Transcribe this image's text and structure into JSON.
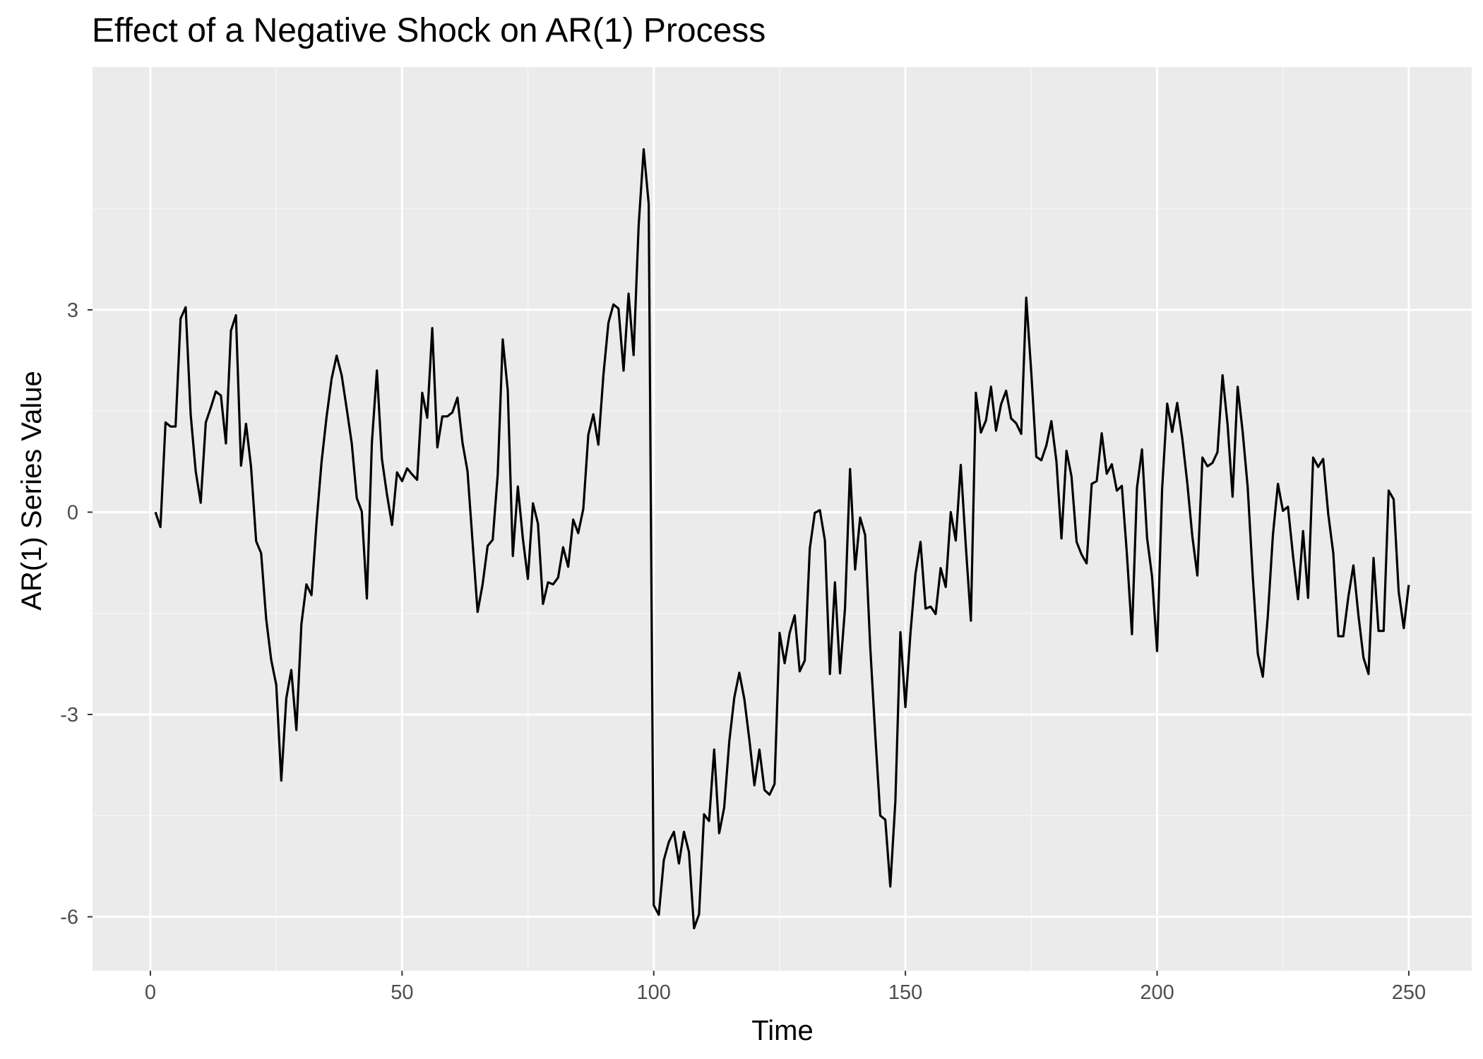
{
  "colors": {
    "panel_background": "#ebebeb",
    "grid_major": "#ffffff",
    "grid_minor": "#f5f5f5",
    "line": "#000000",
    "tick_label": "#4d4d4d",
    "text": "#000000"
  },
  "chart_data": {
    "type": "line",
    "title": "Effect of a Negative Shock on AR(1) Process",
    "xlabel": "Time",
    "ylabel": "AR(1) Series Value",
    "xlim": [
      -11.5,
      262.5
    ],
    "ylim": [
      -6.8,
      6.6
    ],
    "x_ticks": [
      0,
      50,
      100,
      150,
      200,
      250
    ],
    "x_tick_labels": [
      "0",
      "50",
      "100",
      "150",
      "200",
      "250"
    ],
    "y_ticks": [
      3,
      0,
      -3,
      -6
    ],
    "y_tick_labels": [
      "3",
      "0",
      "-3",
      "-6"
    ],
    "grid": true,
    "legend": "none",
    "series": [
      {
        "x": [
          1,
          2,
          3,
          4,
          5,
          6,
          7,
          8,
          9,
          10,
          11,
          12,
          13,
          14,
          15,
          16,
          17,
          18,
          19,
          20,
          21,
          22,
          23,
          24,
          25,
          26,
          27,
          28,
          29,
          30,
          31,
          32,
          33,
          34,
          35,
          36,
          37,
          38,
          39,
          40,
          41,
          42,
          43,
          44,
          45,
          46,
          47,
          48,
          49,
          50,
          51,
          52,
          53,
          54,
          55,
          56,
          57,
          58,
          59,
          60,
          61,
          62,
          63,
          64,
          65,
          66,
          67,
          68,
          69,
          70,
          71,
          72,
          73,
          74,
          75,
          76,
          77,
          78,
          79,
          80,
          81,
          82,
          83,
          84,
          85,
          86,
          87,
          88,
          89,
          90,
          91,
          92,
          93,
          94,
          95,
          96,
          97,
          98,
          99,
          100,
          101,
          102,
          103,
          104,
          105,
          106,
          107,
          108,
          109,
          110,
          111,
          112,
          113,
          114,
          115,
          116,
          117,
          118,
          119,
          120,
          121,
          122,
          123,
          124,
          125,
          126,
          127,
          128,
          129,
          130,
          131,
          132,
          133,
          134,
          135,
          136,
          137,
          138,
          139,
          140,
          141,
          142,
          143,
          144,
          145,
          146,
          147,
          148,
          149,
          150,
          151,
          152,
          153,
          154,
          155,
          156,
          157,
          158,
          159,
          160,
          161,
          162,
          163,
          164,
          165,
          166,
          167,
          168,
          169,
          170,
          171,
          172,
          173,
          174,
          175,
          176,
          177,
          178,
          179,
          180,
          181,
          182,
          183,
          184,
          185,
          186,
          187,
          188,
          189,
          190,
          191,
          192,
          193,
          194,
          195,
          196,
          197,
          198,
          199,
          200,
          201,
          202,
          203,
          204,
          205,
          206,
          207,
          208,
          209,
          210,
          211,
          212,
          213,
          214,
          215,
          216,
          217,
          218,
          219,
          220,
          221,
          222,
          223,
          224,
          225,
          226,
          227,
          228,
          229,
          230,
          231,
          232,
          233,
          234,
          235,
          236,
          237,
          238,
          239,
          240,
          241,
          242,
          243,
          244,
          245,
          246,
          247,
          248,
          249,
          250
        ],
        "y": [
          0,
          -0.22,
          1.33,
          1.27,
          1.27,
          2.87,
          3.04,
          1.45,
          0.61,
          0.14,
          1.33,
          1.55,
          1.79,
          1.73,
          1.02,
          2.69,
          2.92,
          0.69,
          1.31,
          0.67,
          -0.43,
          -0.61,
          -1.58,
          -2.19,
          -2.56,
          -3.98,
          -2.76,
          -2.34,
          -3.23,
          -1.66,
          -1.07,
          -1.23,
          -0.16,
          0.74,
          1.41,
          1.98,
          2.32,
          2.03,
          1.53,
          1.02,
          0.21,
          0.01,
          -1.28,
          1.03,
          2.1,
          0.79,
          0.26,
          -0.19,
          0.59,
          0.46,
          0.65,
          0.56,
          0.48,
          1.77,
          1.4,
          2.73,
          0.96,
          1.42,
          1.42,
          1.48,
          1.7,
          1.03,
          0.61,
          -0.43,
          -1.48,
          -1.07,
          -0.5,
          -0.41,
          0.56,
          2.56,
          1.81,
          -0.65,
          0.38,
          -0.39,
          -0.99,
          0.13,
          -0.17,
          -1.36,
          -1.04,
          -1.07,
          -0.97,
          -0.52,
          -0.81,
          -0.11,
          -0.31,
          0.05,
          1.15,
          1.45,
          1.0,
          2.04,
          2.81,
          3.08,
          3.02,
          2.1,
          3.24,
          2.33,
          4.26,
          5.38,
          4.57,
          -5.83,
          -5.97,
          -5.16,
          -4.89,
          -4.74,
          -5.21,
          -4.74,
          -5.04,
          -6.17,
          -5.96,
          -4.48,
          -4.58,
          -3.52,
          -4.76,
          -4.38,
          -3.4,
          -2.75,
          -2.38,
          -2.77,
          -3.38,
          -4.05,
          -3.52,
          -4.12,
          -4.19,
          -4.03,
          -1.79,
          -2.24,
          -1.79,
          -1.53,
          -2.36,
          -2.2,
          -0.54,
          -0.01,
          0.03,
          -0.42,
          -2.4,
          -1.04,
          -2.39,
          -1.42,
          0.64,
          -0.85,
          -0.08,
          -0.34,
          -1.98,
          -3.3,
          -4.5,
          -4.56,
          -5.55,
          -4.28,
          -1.78,
          -2.89,
          -1.79,
          -0.91,
          -0.44,
          -1.43,
          -1.4,
          -1.51,
          -0.83,
          -1.11,
          0.0,
          -0.42,
          0.7,
          -0.51,
          -1.61,
          1.77,
          1.18,
          1.36,
          1.86,
          1.21,
          1.6,
          1.8,
          1.39,
          1.32,
          1.16,
          3.18,
          2.08,
          0.82,
          0.77,
          0.99,
          1.35,
          0.75,
          -0.39,
          0.91,
          0.53,
          -0.44,
          -0.63,
          -0.76,
          0.42,
          0.46,
          1.17,
          0.57,
          0.71,
          0.32,
          0.39,
          -0.63,
          -1.81,
          0.36,
          0.93,
          -0.38,
          -0.96,
          -2.06,
          0.34,
          1.61,
          1.19,
          1.62,
          1.09,
          0.43,
          -0.36,
          -0.94,
          0.81,
          0.68,
          0.73,
          0.89,
          2.03,
          1.3,
          0.23,
          1.86,
          1.19,
          0.37,
          -0.94,
          -2.1,
          -2.44,
          -1.54,
          -0.34,
          0.42,
          0.02,
          0.08,
          -0.65,
          -1.29,
          -0.28,
          -1.27,
          0.81,
          0.67,
          0.79,
          -0.03,
          -0.61,
          -1.84,
          -1.84,
          -1.25,
          -0.79,
          -1.53,
          -2.16,
          -2.4,
          -0.68,
          -1.76,
          -1.76,
          0.32,
          0.19,
          -1.18,
          -1.72,
          -1.08
        ]
      }
    ]
  }
}
